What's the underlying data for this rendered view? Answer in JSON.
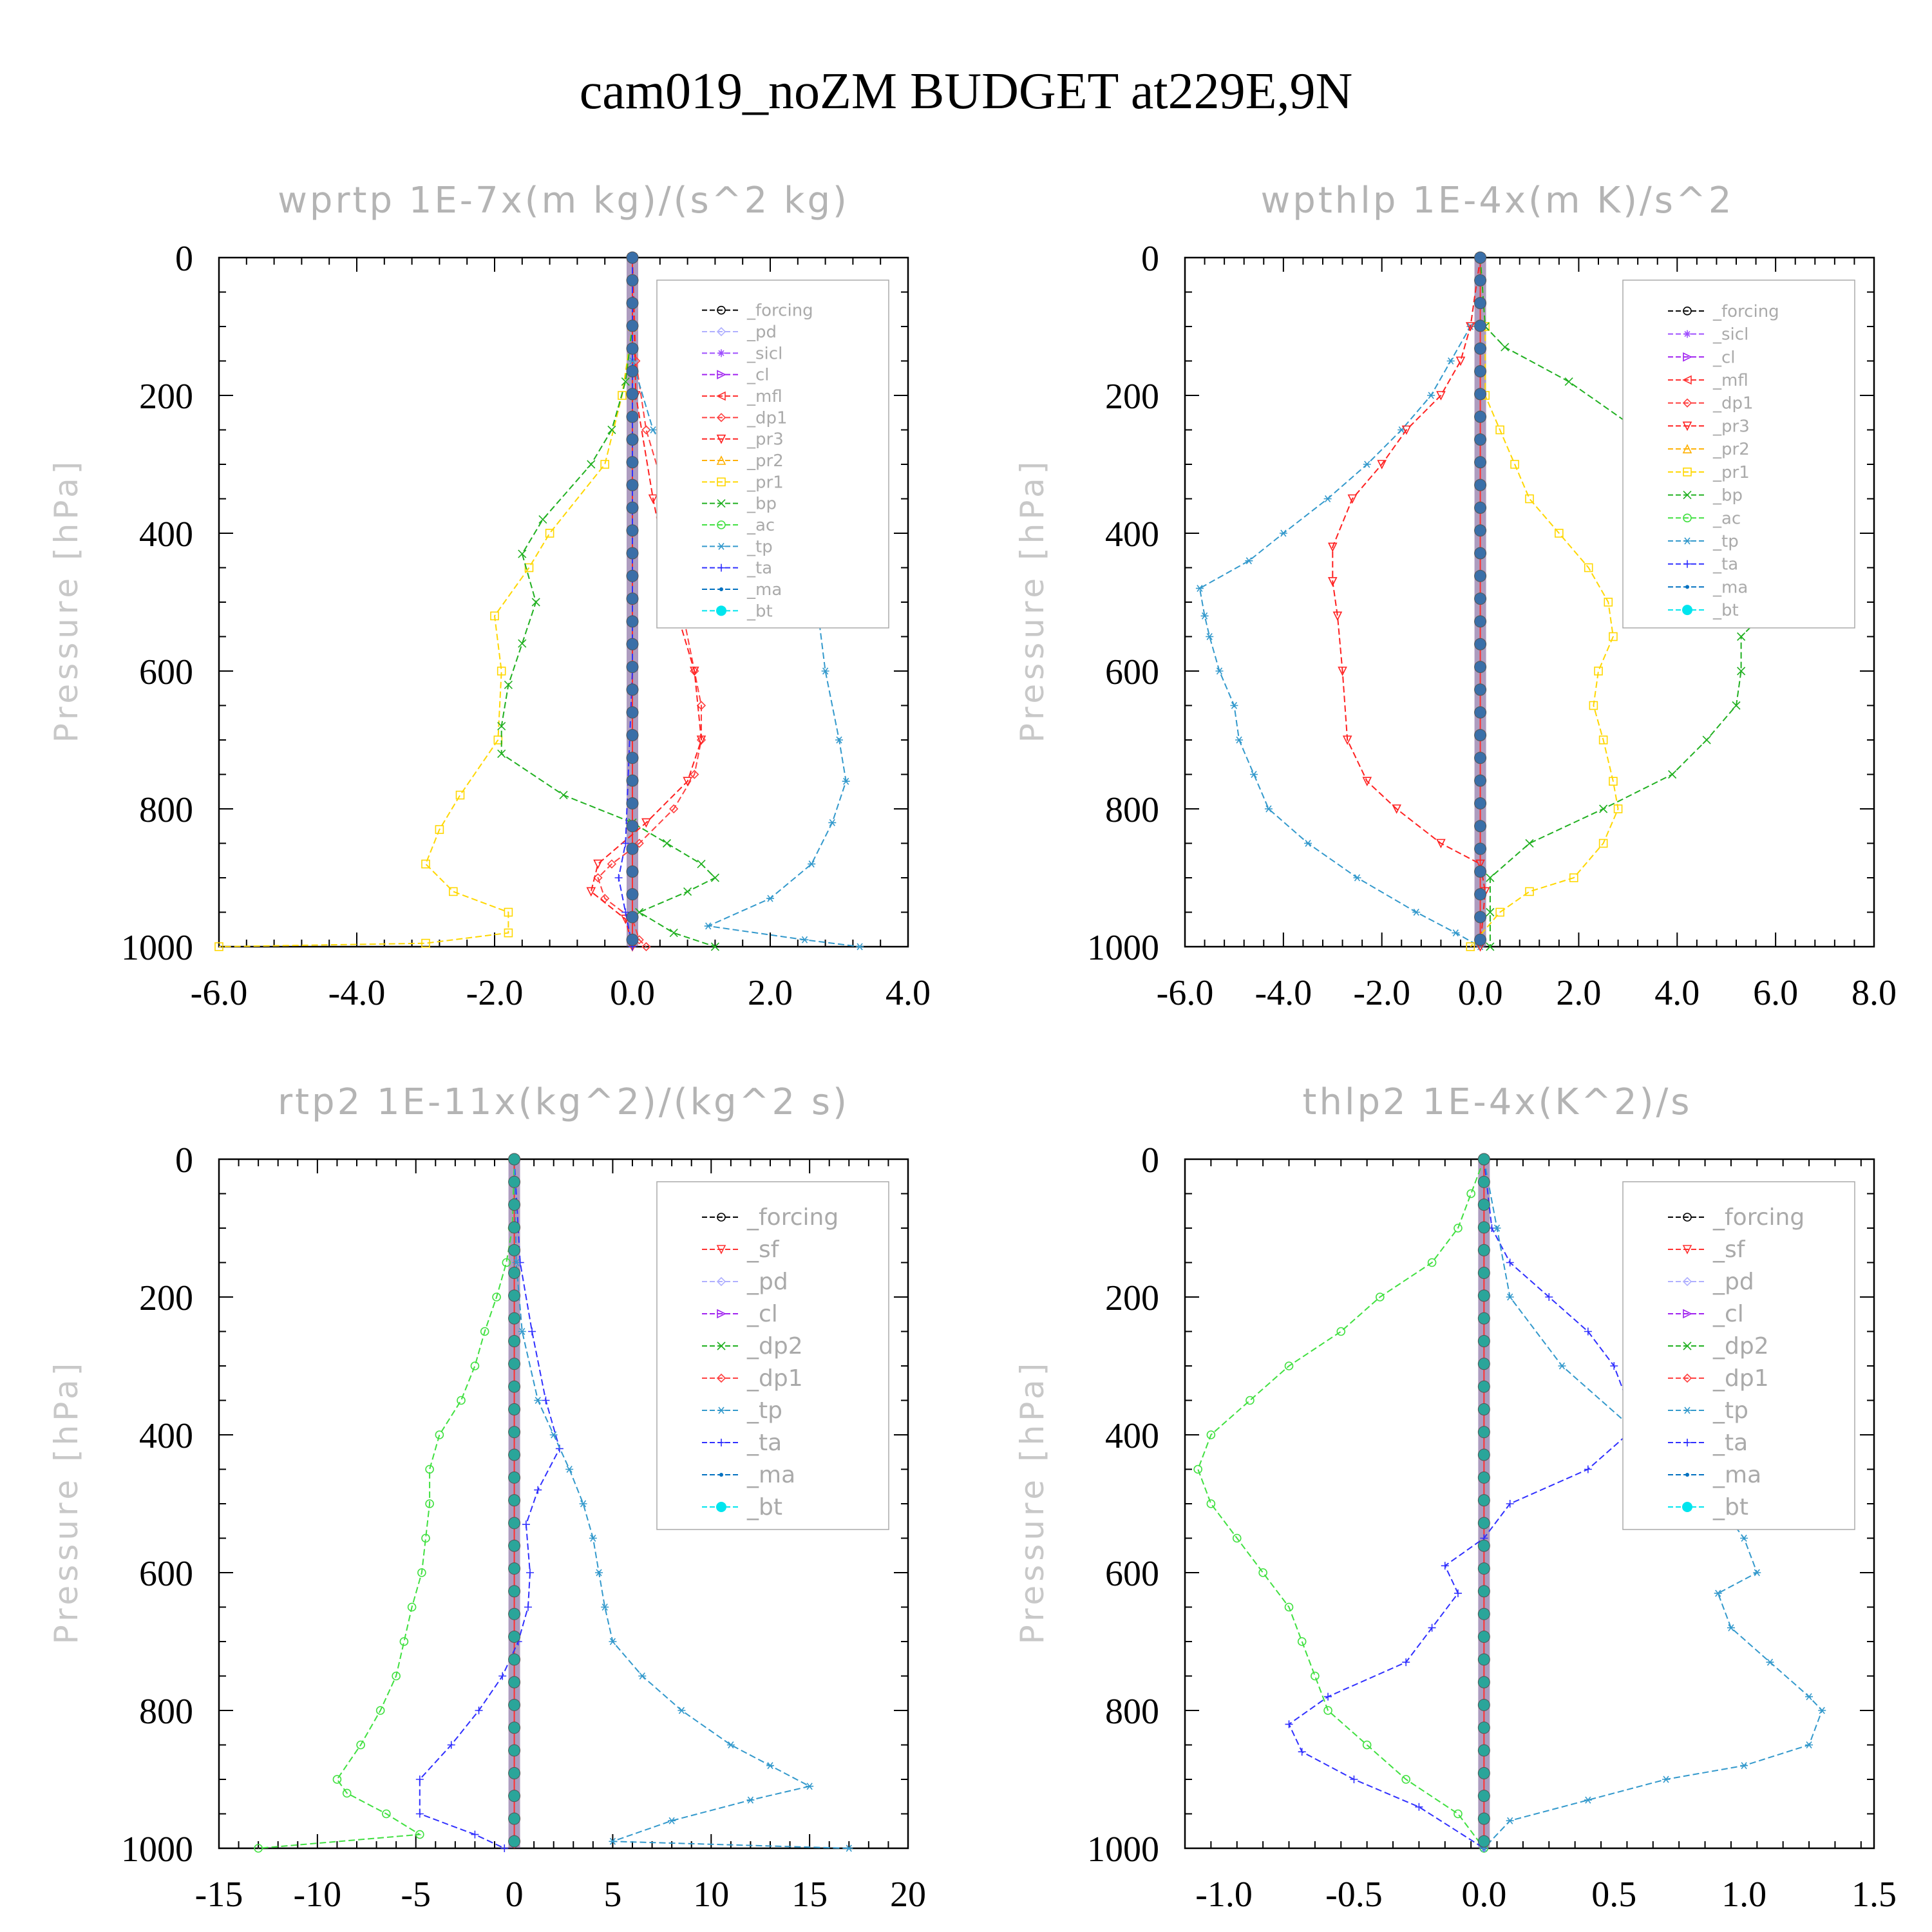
{
  "figure_title": "cam019_noZM  BUDGET at229E,9N",
  "colors": {
    "forcing": "#000000",
    "pd": "#b0b0ff",
    "sicl": "#9f4fff",
    "cl": "#a020f0",
    "mfl": "#ff3030",
    "dp1": "#ff4040",
    "pr3": "#ff2020",
    "pr2": "#ffb000",
    "pr1": "#ffd700",
    "bp": "#20b020",
    "ac": "#40e040",
    "tp": "#3399cc",
    "ta": "#3030ff",
    "ma": "#0070c0",
    "bt": "#00e5ee",
    "sf": "#ff3030",
    "dp2": "#20b020"
  },
  "chart_data": [
    {
      "type": "line",
      "title": "wprtp  1E-7x(m kg)/(s^2 kg)",
      "ylabel": "Pressure [hPa]",
      "xlim": [
        -6,
        4
      ],
      "ylim": [
        0,
        1000
      ],
      "xticks": [
        "-6.0",
        "-4.0",
        "-2.0",
        "0.0",
        "2.0",
        "4.0"
      ],
      "yticks": [
        "0",
        "200",
        "400",
        "600",
        "800",
        "1000"
      ],
      "legend_position": "top-right",
      "legend": [
        "_forcing",
        "_pd",
        "_sicl",
        "_cl",
        "_mfl",
        "_dp1",
        "_pr3",
        "_pr2",
        "_pr1",
        "_bp",
        "_ac",
        "_tp",
        "_ta",
        "_ma",
        "_bt"
      ],
      "series": [
        {
          "key": "pr1",
          "p": [
            0,
            100,
            200,
            300,
            400,
            450,
            520,
            600,
            700,
            780,
            830,
            880,
            920,
            950,
            980,
            995,
            1000
          ],
          "v": [
            0,
            0,
            -0.15,
            -0.4,
            -1.2,
            -1.5,
            -2.0,
            -1.9,
            -1.95,
            -2.5,
            -2.8,
            -3.0,
            -2.6,
            -1.8,
            -1.8,
            -3.0,
            -6.0
          ]
        },
        {
          "key": "bp",
          "p": [
            0,
            100,
            180,
            250,
            300,
            380,
            430,
            500,
            560,
            620,
            680,
            720,
            780,
            820,
            850,
            880,
            900,
            920,
            950,
            980,
            1000
          ],
          "v": [
            0,
            0,
            -0.1,
            -0.3,
            -0.6,
            -1.3,
            -1.6,
            -1.4,
            -1.6,
            -1.8,
            -1.9,
            -1.9,
            -1.0,
            0.0,
            0.5,
            1.0,
            1.2,
            0.8,
            0.1,
            0.6,
            1.2
          ]
        },
        {
          "key": "dp1",
          "p": [
            0,
            150,
            250,
            350,
            500,
            600,
            650,
            700,
            750,
            800,
            850,
            880,
            900,
            930,
            960,
            990,
            1000
          ],
          "v": [
            0,
            0.05,
            0.2,
            0.5,
            0.7,
            0.9,
            1.0,
            1.0,
            0.9,
            0.6,
            0.1,
            -0.3,
            -0.5,
            -0.4,
            0.0,
            0.1,
            0.2
          ]
        },
        {
          "key": "pr3",
          "p": [
            0,
            200,
            350,
            500,
            600,
            700,
            760,
            820,
            880,
            920,
            960,
            1000
          ],
          "v": [
            0,
            0.05,
            0.3,
            0.6,
            0.9,
            1.0,
            0.8,
            0.2,
            -0.5,
            -0.6,
            -0.1,
            0.0
          ]
        },
        {
          "key": "tp",
          "p": [
            0,
            150,
            250,
            350,
            420,
            480,
            520,
            600,
            700,
            760,
            820,
            880,
            930,
            970,
            990,
            1000
          ],
          "v": [
            0,
            0.0,
            0.3,
            0.9,
            1.7,
            2.4,
            2.7,
            2.8,
            3.0,
            3.1,
            2.9,
            2.6,
            2.0,
            1.1,
            2.5,
            3.3
          ]
        },
        {
          "key": "ta",
          "p": [
            0,
            300,
            600,
            850,
            900,
            950,
            1000
          ],
          "v": [
            0,
            0.0,
            0.0,
            -0.1,
            -0.2,
            -0.1,
            0.0
          ]
        }
      ]
    },
    {
      "type": "line",
      "title": "wpthlp  1E-4x(m K)/s^2",
      "ylabel": "Pressure [hPa]",
      "xlim": [
        -6,
        8
      ],
      "ylim": [
        0,
        1000
      ],
      "xticks": [
        "-6.0",
        "-4.0",
        "-2.0",
        "0.0",
        "2.0",
        "4.0",
        "6.0",
        "8.0"
      ],
      "yticks": [
        "0",
        "200",
        "400",
        "600",
        "800",
        "1000"
      ],
      "legend_position": "top-right",
      "legend": [
        "_forcing",
        "_sicl",
        "_cl",
        "_mfl",
        "_dp1",
        "_pr3",
        "_pr2",
        "_pr1",
        "_bp",
        "_ac",
        "_tp",
        "_ta",
        "_ma",
        "_bt"
      ],
      "series": [
        {
          "key": "tp",
          "p": [
            0,
            100,
            150,
            200,
            250,
            300,
            350,
            400,
            440,
            480,
            520,
            550,
            600,
            650,
            700,
            750,
            800,
            850,
            900,
            950,
            980,
            1000
          ],
          "v": [
            0,
            -0.2,
            -0.6,
            -1.0,
            -1.6,
            -2.3,
            -3.1,
            -4.0,
            -4.7,
            -5.7,
            -5.6,
            -5.5,
            -5.3,
            -5.0,
            -4.9,
            -4.6,
            -4.3,
            -3.5,
            -2.5,
            -1.3,
            -0.5,
            0.0
          ]
        },
        {
          "key": "pr3",
          "p": [
            0,
            100,
            150,
            200,
            250,
            300,
            350,
            420,
            470,
            520,
            600,
            700,
            760,
            800,
            850,
            880,
            920,
            1000
          ],
          "v": [
            0,
            -0.2,
            -0.4,
            -0.8,
            -1.5,
            -2.0,
            -2.6,
            -3.0,
            -3.0,
            -2.9,
            -2.8,
            -2.7,
            -2.3,
            -1.7,
            -0.8,
            0.0,
            0.1,
            0.0
          ]
        },
        {
          "key": "pr1",
          "p": [
            0,
            100,
            200,
            250,
            300,
            350,
            400,
            450,
            500,
            550,
            600,
            650,
            700,
            760,
            800,
            850,
            900,
            920,
            950,
            1000
          ],
          "v": [
            0,
            0.1,
            0.1,
            0.4,
            0.7,
            1.0,
            1.6,
            2.2,
            2.6,
            2.7,
            2.4,
            2.3,
            2.5,
            2.7,
            2.8,
            2.5,
            1.9,
            1.0,
            0.4,
            -0.2
          ]
        },
        {
          "key": "bp",
          "p": [
            0,
            100,
            130,
            180,
            250,
            300,
            350,
            400,
            450,
            500,
            550,
            600,
            650,
            700,
            750,
            800,
            850,
            900,
            950,
            1000
          ],
          "v": [
            0,
            0.1,
            0.5,
            1.8,
            3.2,
            4.0,
            4.6,
            5.8,
            6.2,
            6.0,
            5.3,
            5.3,
            5.2,
            4.6,
            3.9,
            2.5,
            1.0,
            0.2,
            0.2,
            0.2
          ]
        }
      ]
    },
    {
      "type": "line",
      "title": "rtp2  1E-11x(kg^2)/(kg^2 s)",
      "ylabel": "Pressure [hPa]",
      "xlim": [
        -15,
        20
      ],
      "ylim": [
        0,
        1000
      ],
      "xticks": [
        "-15",
        "-10",
        "-5",
        "0",
        "5",
        "10",
        "15",
        "20"
      ],
      "yticks": [
        "0",
        "200",
        "400",
        "600",
        "800",
        "1000"
      ],
      "legend_position": "top-right",
      "legend": [
        "_forcing",
        "_sf",
        "_pd",
        "_cl",
        "_dp2",
        "_dp1",
        "_tp",
        "_ta",
        "_ma",
        "_bt"
      ],
      "series": [
        {
          "key": "ac",
          "p": [
            0,
            100,
            150,
            200,
            250,
            300,
            350,
            400,
            450,
            500,
            550,
            600,
            650,
            700,
            750,
            800,
            850,
            900,
            920,
            950,
            980,
            1000
          ],
          "v": [
            0,
            -0.1,
            -0.4,
            -0.9,
            -1.5,
            -2.0,
            -2.7,
            -3.8,
            -4.3,
            -4.3,
            -4.5,
            -4.7,
            -5.2,
            -5.6,
            -6.0,
            -6.8,
            -7.8,
            -9.0,
            -8.5,
            -6.5,
            -4.8,
            -13.0
          ]
        },
        {
          "key": "ta",
          "p": [
            0,
            150,
            250,
            350,
            420,
            480,
            530,
            600,
            650,
            700,
            750,
            800,
            850,
            900,
            950,
            980,
            1000
          ],
          "v": [
            0,
            0.3,
            0.9,
            1.6,
            2.3,
            1.2,
            0.6,
            0.8,
            0.7,
            0.2,
            -0.6,
            -1.8,
            -3.2,
            -4.8,
            -4.8,
            -2.0,
            -0.5
          ]
        },
        {
          "key": "tp",
          "p": [
            0,
            150,
            250,
            350,
            400,
            450,
            500,
            550,
            600,
            650,
            700,
            750,
            800,
            850,
            880,
            910,
            930,
            960,
            990,
            1000
          ],
          "v": [
            0,
            0.1,
            0.4,
            1.2,
            2.0,
            2.8,
            3.5,
            4.0,
            4.3,
            4.6,
            5.0,
            6.5,
            8.5,
            11.0,
            13.0,
            15.0,
            12.0,
            8.0,
            5.0,
            17.0
          ]
        }
      ]
    },
    {
      "type": "line",
      "title": "thlp2  1E-4x(K^2)/s",
      "ylabel": "Pressure [hPa]",
      "xlim": [
        -1.15,
        1.5
      ],
      "ylim": [
        0,
        1000
      ],
      "xticks": [
        "-1.0",
        "-0.5",
        "0.0",
        "0.5",
        "1.0",
        "1.5"
      ],
      "yticks": [
        "0",
        "200",
        "400",
        "600",
        "800",
        "1000"
      ],
      "legend_position": "top-right",
      "legend": [
        "_forcing",
        "_sf",
        "_pd",
        "_cl",
        "_dp2",
        "_dp1",
        "_tp",
        "_ta",
        "_ma",
        "_bt"
      ],
      "series": [
        {
          "key": "ac",
          "p": [
            0,
            50,
            100,
            150,
            200,
            250,
            300,
            350,
            400,
            450,
            500,
            550,
            600,
            650,
            700,
            750,
            800,
            850,
            900,
            950,
            1000
          ],
          "v": [
            0,
            -0.05,
            -0.1,
            -0.2,
            -0.4,
            -0.55,
            -0.75,
            -0.9,
            -1.05,
            -1.1,
            -1.05,
            -0.95,
            -0.85,
            -0.75,
            -0.7,
            -0.65,
            -0.6,
            -0.45,
            -0.3,
            -0.1,
            0.0
          ]
        },
        {
          "key": "ta",
          "p": [
            0,
            100,
            150,
            200,
            250,
            300,
            350,
            400,
            450,
            500,
            550,
            590,
            630,
            680,
            730,
            780,
            820,
            860,
            900,
            940,
            1000
          ],
          "v": [
            0,
            0.03,
            0.1,
            0.25,
            0.4,
            0.5,
            0.55,
            0.55,
            0.4,
            0.1,
            0.0,
            -0.15,
            -0.1,
            -0.2,
            -0.3,
            -0.6,
            -0.75,
            -0.7,
            -0.5,
            -0.25,
            0.0
          ]
        },
        {
          "key": "tp",
          "p": [
            0,
            100,
            200,
            300,
            400,
            450,
            500,
            550,
            600,
            630,
            680,
            730,
            780,
            800,
            850,
            880,
            900,
            930,
            960,
            1000
          ],
          "v": [
            0,
            0.05,
            0.1,
            0.3,
            0.6,
            0.75,
            0.9,
            1.0,
            1.05,
            0.9,
            0.95,
            1.1,
            1.25,
            1.3,
            1.25,
            1.0,
            0.7,
            0.4,
            0.1,
            0.0
          ]
        }
      ]
    }
  ]
}
